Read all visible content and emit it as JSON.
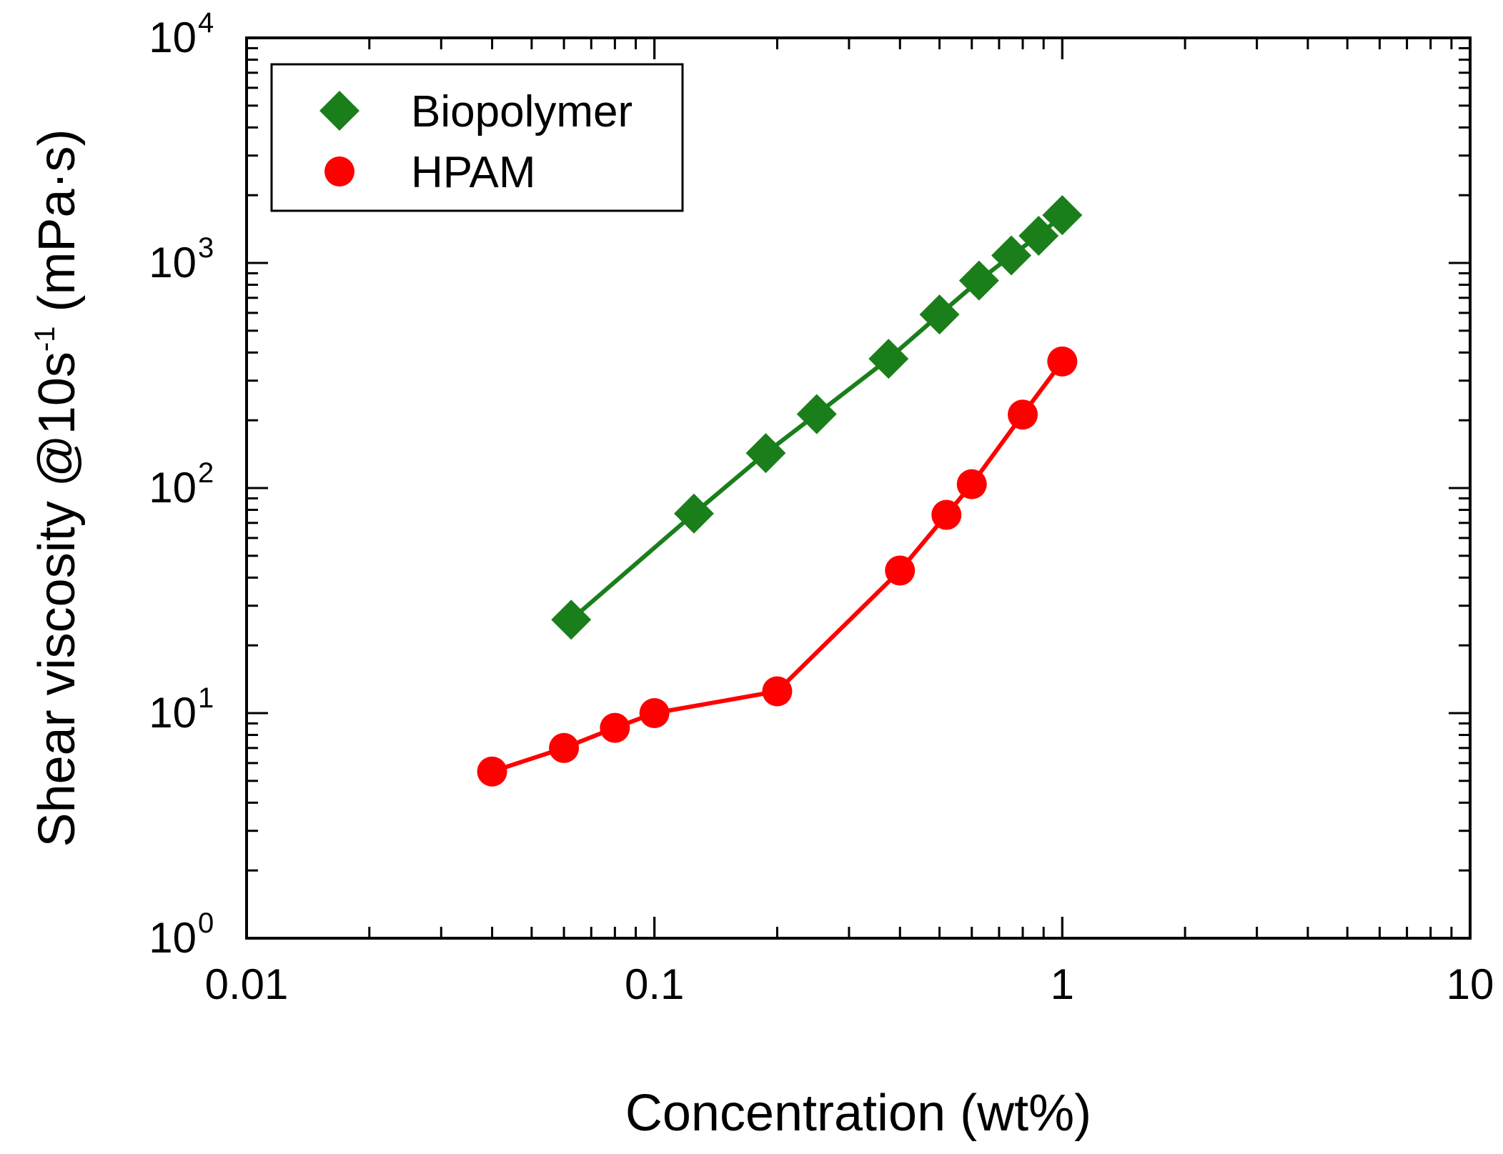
{
  "chart_data": {
    "type": "scatter",
    "xscale": "log",
    "yscale": "log",
    "xlabel": "Concentration (wt%)",
    "ylabel": {
      "main": "Shear viscosity @10s",
      "superscript": "-1",
      "unit": " (mPa·s)"
    },
    "xlim": [
      0.01,
      10
    ],
    "ylim": [
      1,
      10000
    ],
    "x_ticks": [
      {
        "value": 0.01,
        "label": "0.01"
      },
      {
        "value": 0.1,
        "label": "0.1"
      },
      {
        "value": 1,
        "label": "1"
      },
      {
        "value": 10,
        "label": "10"
      }
    ],
    "y_ticks": [
      {
        "value": 1,
        "base": "10",
        "exp": "0"
      },
      {
        "value": 10,
        "base": "10",
        "exp": "1"
      },
      {
        "value": 100,
        "base": "10",
        "exp": "2"
      },
      {
        "value": 1000,
        "base": "10",
        "exp": "3"
      },
      {
        "value": 10000,
        "base": "10",
        "exp": "4"
      }
    ],
    "legend_position": "top-left",
    "series": [
      {
        "name": "Biopolymer",
        "marker": "diamond",
        "color": "#1a7f1a",
        "x": [
          0.0625,
          0.125,
          0.1875,
          0.25,
          0.375,
          0.5,
          0.625,
          0.75,
          0.875,
          1.0
        ],
        "y": [
          26,
          77,
          143,
          213,
          375,
          590,
          835,
          1080,
          1320,
          1630
        ]
      },
      {
        "name": "HPAM",
        "marker": "circle",
        "color": "#ff0000",
        "x": [
          0.04,
          0.06,
          0.08,
          0.1,
          0.2,
          0.4,
          0.52,
          0.6,
          0.8,
          1.0
        ],
        "y": [
          5.5,
          7.0,
          8.6,
          10.0,
          12.5,
          43,
          76,
          104,
          212,
          365
        ]
      }
    ]
  }
}
